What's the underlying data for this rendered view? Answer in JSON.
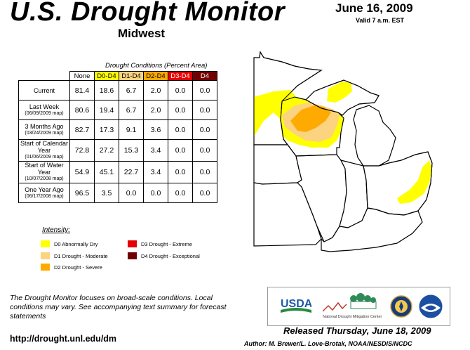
{
  "header": {
    "title": "U.S. Drought Monitor",
    "region": "Midwest",
    "date": "June 16, 2009",
    "valid": "Valid 7 a.m. EST"
  },
  "table": {
    "caption": "Drought Conditions (Percent Area)",
    "columns": [
      "None",
      "D0-D4",
      "D1-D4",
      "D2-D4",
      "D3-D4",
      "D4"
    ],
    "rows": [
      {
        "label": "Current",
        "sub": "",
        "values": [
          "81.4",
          "18.6",
          "6.7",
          "2.0",
          "0.0",
          "0.0"
        ]
      },
      {
        "label": "Last Week",
        "sub": "(06/09/2009 map)",
        "values": [
          "80.6",
          "19.4",
          "6.7",
          "2.0",
          "0.0",
          "0.0"
        ]
      },
      {
        "label": "3 Months Ago",
        "sub": "(03/24/2009 map)",
        "values": [
          "82.7",
          "17.3",
          "9.1",
          "3.6",
          "0.0",
          "0.0"
        ]
      },
      {
        "label": "Start of Calendar Year",
        "sub": "(01/06/2009 map)",
        "values": [
          "72.8",
          "27.2",
          "15.3",
          "3.4",
          "0.0",
          "0.0"
        ]
      },
      {
        "label": "Start of Water Year",
        "sub": "(10/07/2008 map)",
        "values": [
          "54.9",
          "45.1",
          "22.7",
          "3.4",
          "0.0",
          "0.0"
        ]
      },
      {
        "label": "One Year Ago",
        "sub": "(06/17/2008 map)",
        "values": [
          "96.5",
          "3.5",
          "0.0",
          "0.0",
          "0.0",
          "0.0"
        ]
      }
    ]
  },
  "legend": {
    "title": "Intensity:",
    "items": [
      {
        "label": "D0 Abnormally Dry",
        "color": "#ffff00"
      },
      {
        "label": "D1 Drought - Moderate",
        "color": "#fcd37f"
      },
      {
        "label": "D2 Drought - Severe",
        "color": "#ffaa00"
      },
      {
        "label": "D3 Drought - Extreme",
        "color": "#e60000"
      },
      {
        "label": "D4 Drought - Exceptional",
        "color": "#730000"
      }
    ]
  },
  "footer": {
    "note": "The Drought Monitor focuses on broad-scale conditions. Local conditions may vary. See accompanying text summary for forecast statements",
    "url": "http://drought.unl.edu/dm",
    "released": "Released Thursday, June 18, 2009",
    "author": "Author: M. Brewer/L. Love-Brotak, NOAA/NESDIS/NCDC"
  },
  "logos": {
    "usda": "USDA",
    "ndmc": "National Drought Mitigation Center"
  },
  "map_colors": {
    "land": "#ffffff",
    "border": "#000000",
    "state_lines": "#666666"
  }
}
